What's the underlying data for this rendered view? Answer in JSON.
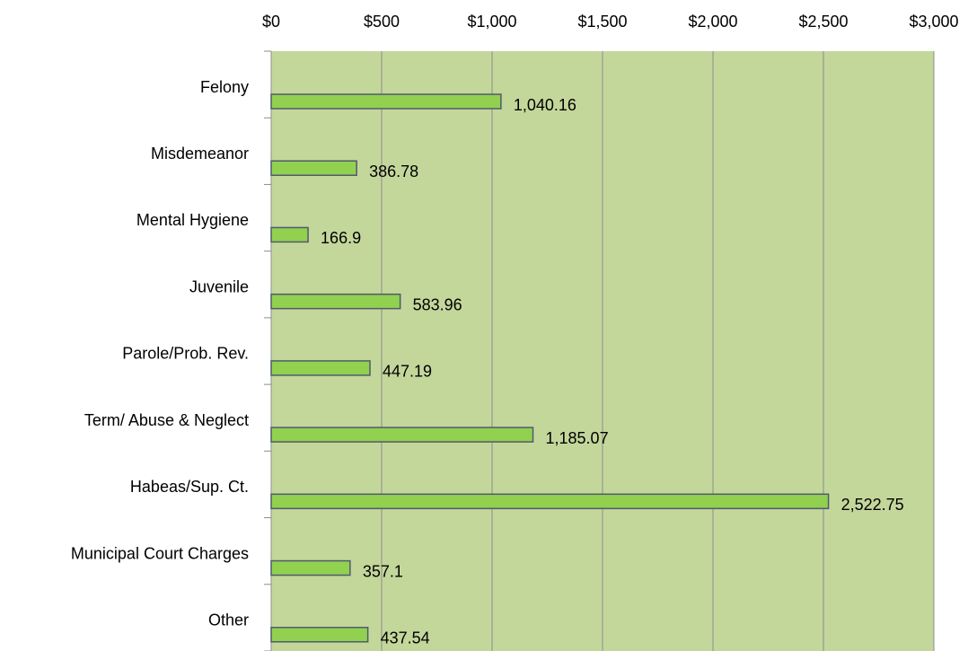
{
  "chart_data": {
    "type": "bar",
    "orientation": "horizontal",
    "categories": [
      "Felony",
      "Misdemeanor",
      "Mental Hygiene",
      "Juvenile",
      "Parole/Prob. Rev.",
      "Term/ Abuse & Neglect",
      "Habeas/Sup. Ct.",
      "Municipal Court Charges",
      "Other"
    ],
    "values": [
      1040.16,
      386.78,
      166.9,
      583.96,
      447.19,
      1185.07,
      2522.75,
      357.1,
      437.54
    ],
    "value_labels": [
      "1,040.16",
      "386.78",
      "166.9",
      "583.96",
      "447.19",
      "1,185.07",
      "2,522.75",
      "357.1",
      "437.54"
    ],
    "color": "#92d050",
    "xlim": [
      0,
      3000
    ],
    "xticks": [
      {
        "value": 0,
        "label": "$0"
      },
      {
        "value": 500,
        "label": "$500"
      },
      {
        "value": 1000,
        "label": "$1,000"
      },
      {
        "value": 1500,
        "label": "$1,500"
      },
      {
        "value": 2000,
        "label": "$2,000"
      },
      {
        "value": 2500,
        "label": "$2,500"
      },
      {
        "value": 3000,
        "label": "$3,000"
      }
    ],
    "grid": true
  }
}
